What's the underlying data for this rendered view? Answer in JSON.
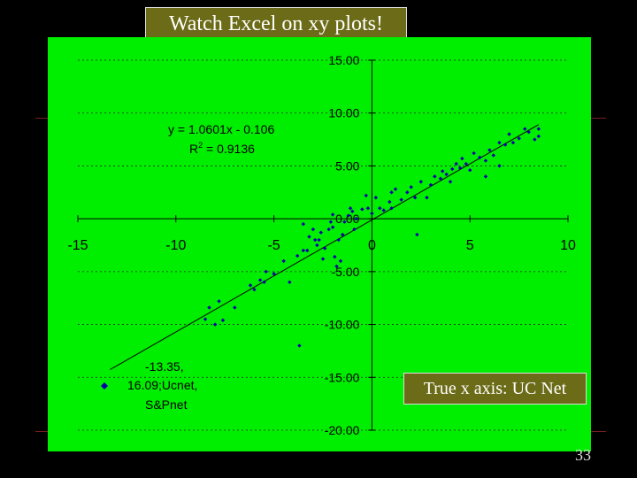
{
  "slide": {
    "title": "Watch Excel on xy plots!",
    "note": "True x axis: UC Net",
    "page_number": "33"
  },
  "colors": {
    "plot_bg": "#00ee00",
    "title_bg": "#6b6b18",
    "marker": "#0000aa"
  },
  "chart_data": {
    "type": "scatter",
    "title": "",
    "xlabel": "",
    "ylabel": "",
    "xlim": [
      -15,
      10
    ],
    "ylim": [
      -20,
      15
    ],
    "x_ticks": [
      -15,
      -10,
      -5,
      0,
      5,
      10
    ],
    "y_ticks": [
      15,
      10,
      5,
      0,
      -5,
      -10,
      -15,
      -20
    ],
    "y_tick_labels": [
      "15.00",
      "10.00",
      "5.00",
      "0.00",
      "-5.00",
      "-10.00",
      "-15.00",
      "-20.00"
    ],
    "grid": "horizontal dashed",
    "trendline": {
      "slope": 1.0601,
      "intercept": -0.106,
      "x_range": [
        -13.35,
        8.5
      ]
    },
    "equation_label": "y = 1.0601x - 0.106",
    "r2_label_prefix": "R",
    "r2_label_exp": "2",
    "r2_label_suffix": " = 0.9136",
    "legend_entry": "-13.35, 16.09; Ucnet, S&Pnet",
    "legend_lines": [
      "-13.35,",
      "16.09;Ucnet,",
      "S&Pnet"
    ],
    "legend_position": "bottom-left",
    "series": [
      {
        "x": [
          -8.5,
          -8.3,
          -8.0,
          -7.8,
          -7.6,
          -7.0,
          -6.2,
          -6.0,
          -5.7,
          -5.5,
          -5.4,
          -5.0,
          -4.5,
          -4.2,
          -3.8,
          -3.7,
          -3.5,
          -3.3,
          -3.2,
          -3.0,
          -2.9,
          -2.8,
          -2.7,
          -2.6,
          -2.5,
          -2.4,
          -2.2,
          -2.1,
          -2.0,
          -1.9,
          -1.8,
          -1.7,
          -1.6,
          -1.5,
          -1.4,
          -1.2,
          -1.1,
          -1.0,
          -0.9,
          -0.8,
          -0.5,
          -0.3,
          -0.2,
          0.0,
          0.2,
          0.4,
          0.6,
          0.9,
          1.0,
          1.2,
          1.5,
          1.8,
          2.0,
          2.2,
          2.5,
          2.8,
          3.0,
          3.2,
          3.5,
          3.6,
          3.8,
          4.0,
          4.1,
          4.3,
          4.5,
          4.6,
          4.8,
          5.0,
          5.2,
          5.5,
          5.8,
          6.0,
          6.2,
          6.5,
          6.8,
          7.0,
          7.2,
          7.5,
          7.8,
          8.0,
          8.3,
          8.5,
          8.5,
          6.5,
          5.8,
          2.3,
          1.0,
          -3.5,
          -2.0
        ],
        "y": [
          -9.5,
          -8.4,
          -10.0,
          -7.8,
          -9.6,
          -8.4,
          -6.3,
          -6.7,
          -5.8,
          -6.0,
          -5.0,
          -5.2,
          -4.0,
          -6.0,
          -3.5,
          -12.0,
          -3.0,
          -3.0,
          -1.7,
          -1.0,
          -2.0,
          -2.5,
          -2.0,
          -1.3,
          -3.8,
          -2.8,
          -1.0,
          -0.3,
          -0.8,
          -3.6,
          -4.5,
          -2.0,
          -4.0,
          -1.5,
          -0.3,
          0.3,
          1.0,
          0.7,
          -1.0,
          0.0,
          0.9,
          2.2,
          1.0,
          0.5,
          2.0,
          1.0,
          0.8,
          1.6,
          2.5,
          2.8,
          1.8,
          2.5,
          3.0,
          2.0,
          3.5,
          2.0,
          3.2,
          4.0,
          3.8,
          4.5,
          4.2,
          3.5,
          4.7,
          5.2,
          4.8,
          5.7,
          5.2,
          4.6,
          6.2,
          5.8,
          5.5,
          6.5,
          6.0,
          7.2,
          7.0,
          8.0,
          7.2,
          7.6,
          8.5,
          8.2,
          7.5,
          8.5,
          7.8,
          5.0,
          4.0,
          -1.5,
          1.0,
          -0.5,
          0.4
        ]
      }
    ]
  }
}
